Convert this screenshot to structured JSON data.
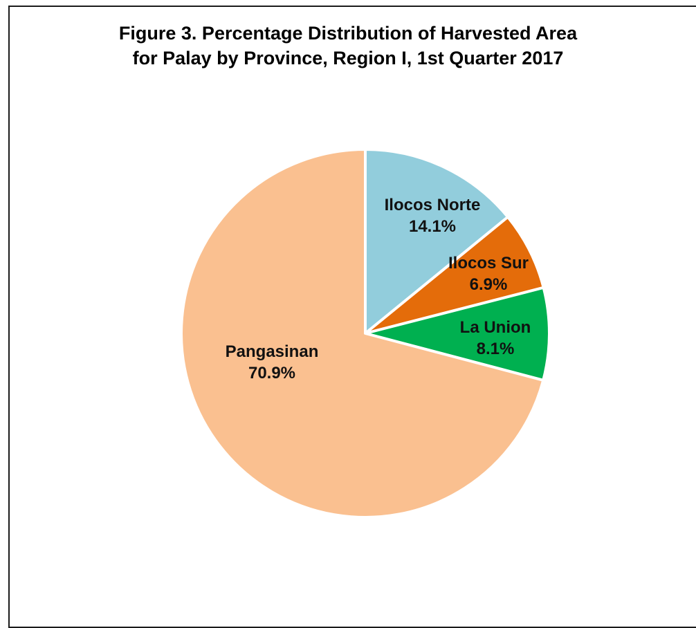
{
  "chart_data": {
    "type": "pie",
    "title_lines": [
      "Figure 3. Percentage Distribution of Harvested Area",
      "for Palay by Province, Region I, 1st Quarter 2017"
    ],
    "slices": [
      {
        "label": "Ilocos Norte",
        "value": 14.1,
        "value_label": "14.1%",
        "color": "#92CDDC"
      },
      {
        "label": "Ilocos Sur",
        "value": 6.9,
        "value_label": "6.9%",
        "color": "#E46C0A"
      },
      {
        "label": "La Union",
        "value": 8.1,
        "value_label": "8.1%",
        "color": "#00B050"
      },
      {
        "label": "Pangasinan",
        "value": 70.9,
        "value_label": "70.9%",
        "color": "#FAC090"
      }
    ],
    "start_angle": "12 o'clock",
    "direction": "clockwise",
    "slice_border_color": "#FFFFFF",
    "legend": "none"
  }
}
